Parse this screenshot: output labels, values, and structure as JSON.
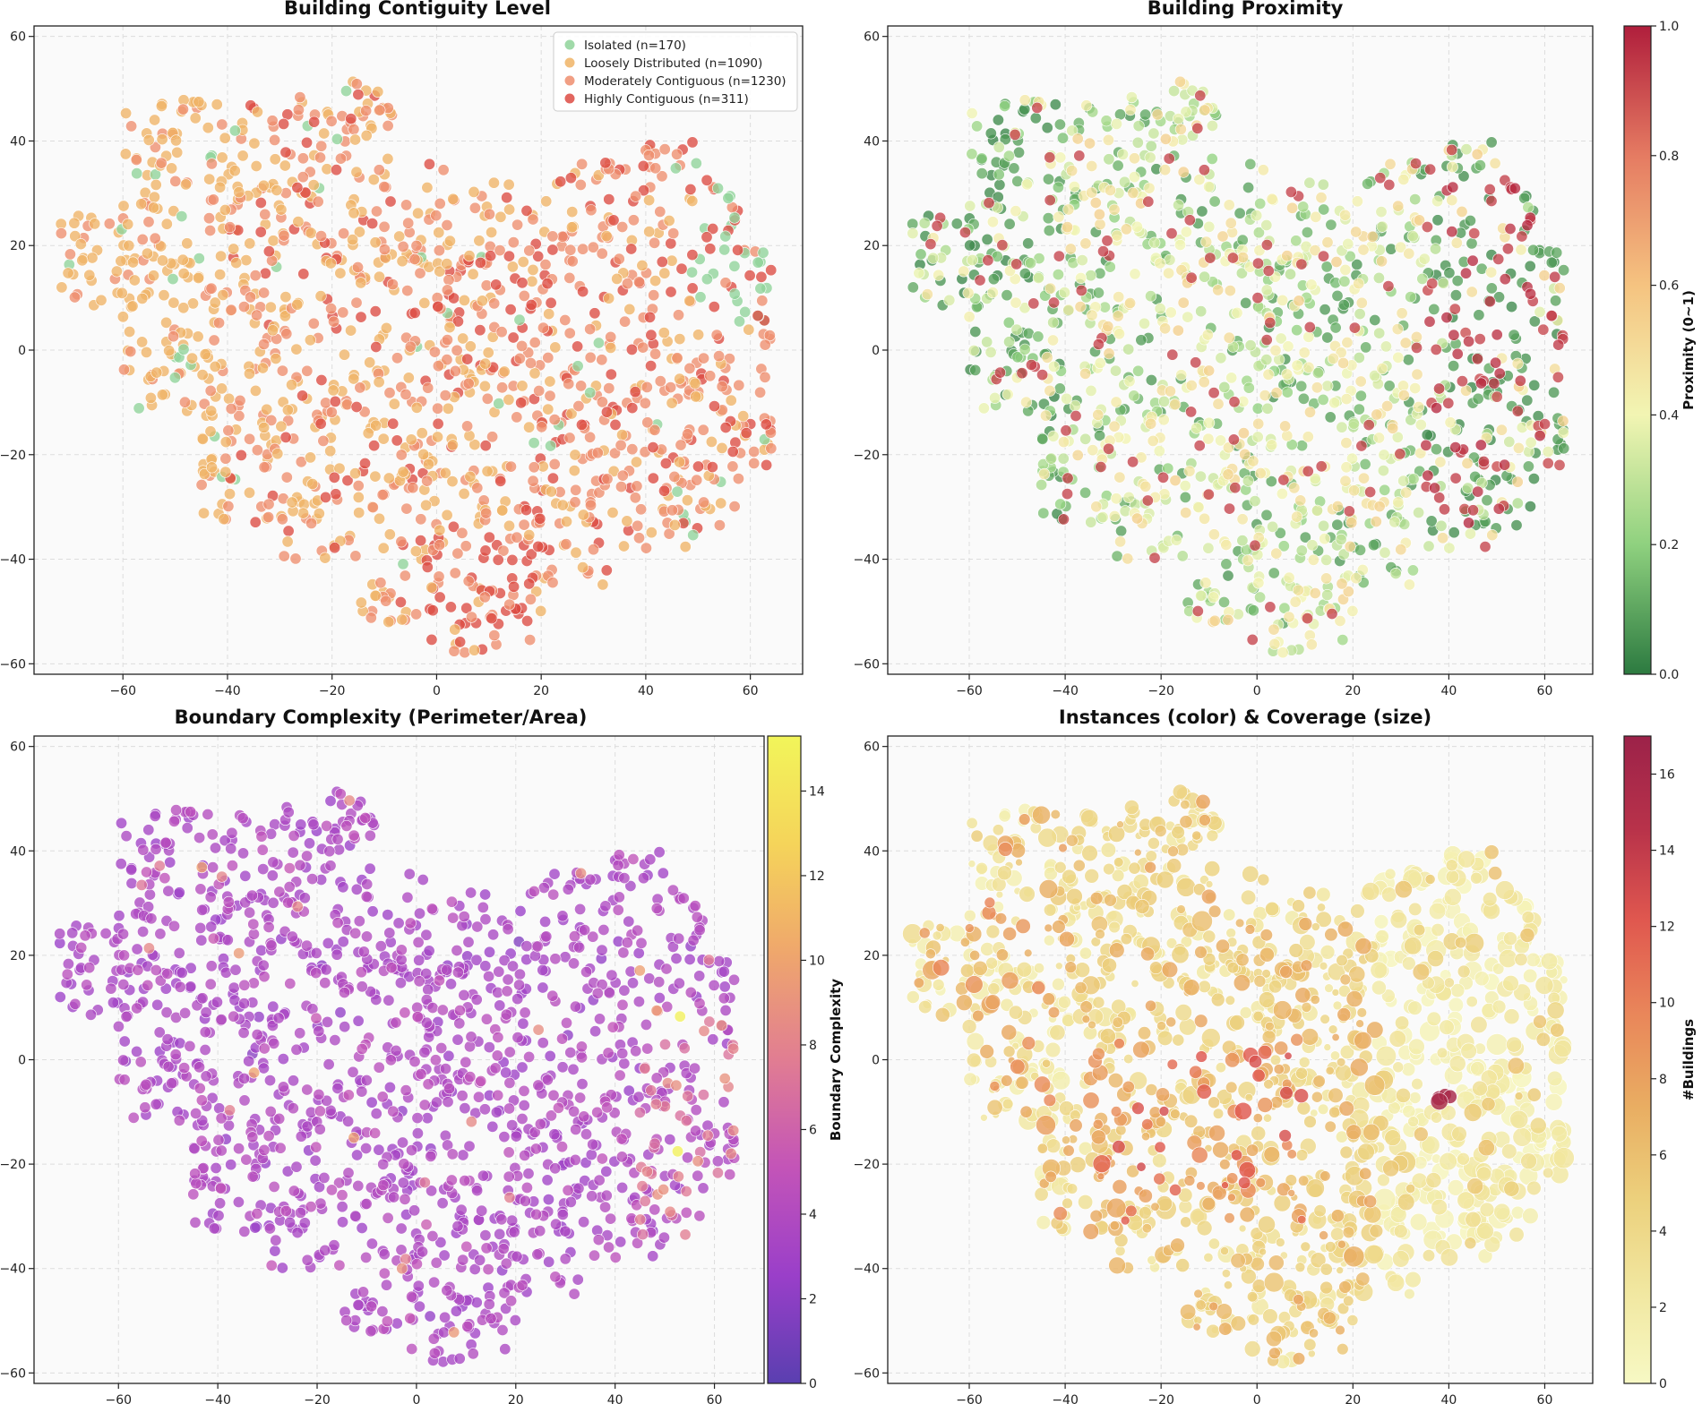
{
  "chart_data": [
    {
      "type": "scatter",
      "title": "Building Contiguity Level",
      "xlabel": "",
      "ylabel": "",
      "xlim": [
        -77,
        70
      ],
      "ylim": [
        -62,
        62
      ],
      "xticks": [
        -60,
        -40,
        -20,
        0,
        20,
        40,
        60
      ],
      "yticks": [
        -60,
        -40,
        -20,
        0,
        20,
        40,
        60
      ],
      "xtick_labels": [
        "−60",
        "−40",
        "−20",
        "0",
        "20",
        "40",
        "60"
      ],
      "ytick_labels": [
        "−60",
        "−40",
        "−20",
        "0",
        "20",
        "40",
        "60"
      ],
      "grid": true,
      "legend": {
        "position": "top-right",
        "entries": [
          {
            "label": "Isolated (n=170)",
            "color": "#8fd49a"
          },
          {
            "label": "Loosely Distributed (n=1090)",
            "color": "#f0b466"
          },
          {
            "label": "Moderately Contiguous (n=1230)",
            "color": "#ee8e6e"
          },
          {
            "label": "Highly Contiguous (n=311)",
            "color": "#dd4b43"
          }
        ]
      },
      "coloring": "category",
      "cluster_summary": [
        {
          "region": "left arm",
          "x_range": [
            -70,
            -40
          ],
          "y_range": [
            5,
            48
          ],
          "dominant": "Loosely Distributed"
        },
        {
          "region": "right lobe",
          "x_range": [
            20,
            62
          ],
          "y_range": [
            -35,
            35
          ],
          "dominant": "Moderately Contiguous"
        },
        {
          "region": "far right edge",
          "x_range": [
            50,
            62
          ],
          "y_range": [
            5,
            30
          ],
          "dominant": "Isolated"
        },
        {
          "region": "bottom tail",
          "x_range": [
            0,
            20
          ],
          "y_range": [
            -57,
            -35
          ],
          "dominant": "Highly Contiguous"
        }
      ],
      "total_points": 2801
    },
    {
      "type": "scatter",
      "title": "Building Proximity",
      "xlabel": "",
      "ylabel": "",
      "xlim": [
        -77,
        70
      ],
      "ylim": [
        -62,
        62
      ],
      "xticks": [
        -60,
        -40,
        -20,
        0,
        20,
        40,
        60
      ],
      "yticks": [
        -60,
        -40,
        -20,
        0,
        20,
        40,
        60
      ],
      "xtick_labels": [
        "−60",
        "−40",
        "−20",
        "0",
        "20",
        "40",
        "60"
      ],
      "ytick_labels": [
        "−60",
        "−40",
        "−20",
        "0",
        "20",
        "40",
        "60"
      ],
      "grid": true,
      "coloring": "continuous",
      "colormap": "RdYlGn_r",
      "colorbar": {
        "label": "Proximity (0~1)",
        "range": [
          0.0,
          1.0
        ],
        "ticks": [
          0.0,
          0.2,
          0.4,
          0.6,
          0.8,
          1.0
        ],
        "tick_labels": [
          "0.0",
          "0.2",
          "0.4",
          "0.6",
          "0.8",
          "1.0"
        ],
        "colors": [
          "#2c7a40",
          "#8fd17f",
          "#f2f5b3",
          "#f5c380",
          "#e57b62",
          "#b01e3c"
        ]
      },
      "cluster_summary": [
        {
          "region": "left arm",
          "x_range": [
            -70,
            -40
          ],
          "y_range": [
            5,
            48
          ],
          "typical_value": 0.15
        },
        {
          "region": "center",
          "x_range": [
            -20,
            30
          ],
          "y_range": [
            -40,
            10
          ],
          "typical_value": 0.35
        },
        {
          "region": "right lobe",
          "x_range": [
            35,
            62
          ],
          "y_range": [
            -35,
            35
          ],
          "typical_value": "mixed 0.05 / 0.95"
        }
      ]
    },
    {
      "type": "scatter",
      "title": "Boundary Complexity (Perimeter/Area)",
      "xlabel": "",
      "ylabel": "",
      "xlim": [
        -77,
        70
      ],
      "ylim": [
        -62,
        62
      ],
      "xticks": [
        -60,
        -40,
        -20,
        0,
        20,
        40,
        60
      ],
      "yticks": [
        -60,
        -40,
        -20,
        0,
        20,
        40,
        60
      ],
      "xtick_labels": [
        "−60",
        "−40",
        "−20",
        "0",
        "20",
        "40",
        "60"
      ],
      "ytick_labels": [
        "−60",
        "−40",
        "−20",
        "0",
        "20",
        "40",
        "60"
      ],
      "grid": true,
      "coloring": "continuous",
      "colormap": "plasma-like",
      "colorbar": {
        "label": "Boundary Complexity",
        "range": [
          0,
          15.3
        ],
        "ticks": [
          0,
          2,
          4,
          6,
          8,
          10,
          12,
          14
        ],
        "tick_labels": [
          "0",
          "2",
          "4",
          "6",
          "8",
          "10",
          "12",
          "14"
        ],
        "colors": [
          "#5a3fb0",
          "#9a3fc9",
          "#c354b8",
          "#e17d92",
          "#efa76c",
          "#f5d45a",
          "#f2f55a"
        ]
      },
      "cluster_summary": [
        {
          "region": "whole cloud",
          "typical_value": 4.5
        },
        {
          "region": "right lobe edge",
          "x_range": [
            45,
            60
          ],
          "y_range": [
            -35,
            10
          ],
          "typical_value": 7.5
        },
        {
          "region": "outliers",
          "points": [
            [
              53,
              8
            ],
            [
              51,
              -19
            ]
          ],
          "typical_value": 15
        }
      ]
    },
    {
      "type": "scatter",
      "title": "Instances (color) & Coverage (size)",
      "xlabel": "",
      "ylabel": "",
      "xlim": [
        -77,
        70
      ],
      "ylim": [
        -62,
        62
      ],
      "xticks": [
        -60,
        -40,
        -20,
        0,
        20,
        40,
        60
      ],
      "yticks": [
        -60,
        -40,
        -20,
        0,
        20,
        40,
        60
      ],
      "xtick_labels": [
        "−60",
        "−40",
        "−20",
        "0",
        "20",
        "40",
        "60"
      ],
      "ytick_labels": [
        "−60",
        "−40",
        "−20",
        "0",
        "20",
        "40",
        "60"
      ],
      "grid": true,
      "coloring": "continuous",
      "colormap": "YlOrRd-like",
      "colorbar": {
        "label": "#Buildings",
        "range": [
          0,
          17
        ],
        "ticks": [
          0,
          2,
          4,
          6,
          8,
          10,
          12,
          14,
          16
        ],
        "tick_labels": [
          "0",
          "2",
          "4",
          "6",
          "8",
          "10",
          "12",
          "14",
          "16"
        ],
        "colors": [
          "#f7f9c4",
          "#f1e7a0",
          "#ecd07c",
          "#e9ad62",
          "#e9865a",
          "#e0584f",
          "#b8324a",
          "#9c2249"
        ]
      },
      "size_encoding": "Coverage",
      "cluster_summary": [
        {
          "region": "left arm",
          "x_range": [
            -70,
            -40
          ],
          "y_range": [
            5,
            48
          ],
          "typical_value": 3
        },
        {
          "region": "center-left band",
          "x_range": [
            -30,
            10
          ],
          "y_range": [
            -30,
            5
          ],
          "typical_value": 7
        },
        {
          "region": "right lobe",
          "x_range": [
            30,
            62
          ],
          "y_range": [
            -30,
            35
          ],
          "typical_value": 1.5
        },
        {
          "region": "outlier",
          "points": [
            [
              39,
              -7
            ]
          ],
          "typical_value": 16
        }
      ]
    }
  ]
}
